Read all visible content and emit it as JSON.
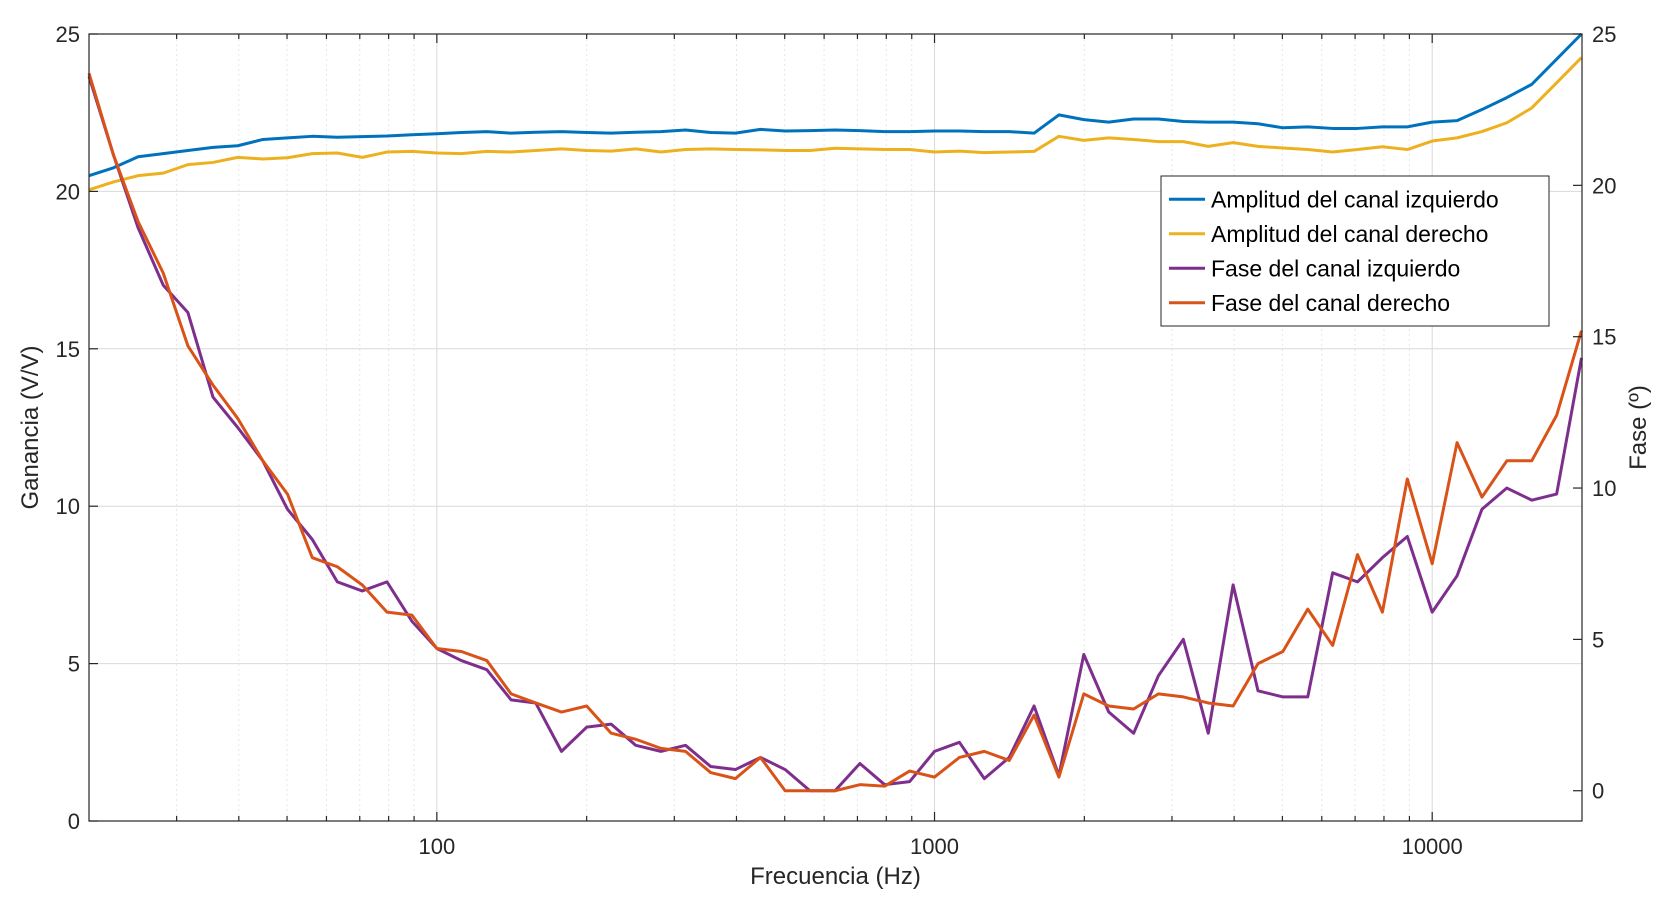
{
  "chart_data": {
    "type": "line",
    "xlabel": "Frecuencia (Hz)",
    "ylabel_left": "Ganancia (V/V)",
    "ylabel_right": "Fase (º)",
    "x_scale": "log",
    "xlim": [
      20,
      20000
    ],
    "ylim_left": [
      0,
      25
    ],
    "ylim_right": [
      -1,
      25
    ],
    "x_ticks": [
      100,
      1000,
      10000
    ],
    "x_tick_labels": [
      "100",
      "1000",
      "10000"
    ],
    "y_left_ticks": [
      0,
      5,
      10,
      15,
      20,
      25
    ],
    "y_left_tick_labels": [
      "0",
      "5",
      "10",
      "15",
      "20",
      "25"
    ],
    "y_right_ticks": [
      0,
      5,
      10,
      15,
      20,
      25
    ],
    "y_right_tick_labels": [
      "0",
      "5",
      "10",
      "15",
      "20",
      "25"
    ],
    "grid": true,
    "legend_position": "top-right",
    "x": [
      20,
      22.4,
      25.1,
      28.2,
      31.6,
      35.5,
      39.8,
      44.7,
      50.1,
      56.2,
      63.1,
      70.8,
      79.4,
      89.1,
      100,
      112,
      126,
      141,
      158,
      178,
      200,
      224,
      251,
      282,
      316,
      355,
      398,
      447,
      501,
      562,
      631,
      708,
      794,
      891,
      1000,
      1122,
      1259,
      1413,
      1585,
      1778,
      1995,
      2239,
      2512,
      2818,
      3162,
      3548,
      3981,
      4467,
      5012,
      5623,
      6310,
      7079,
      7943,
      8913,
      10000,
      11220,
      12589,
      14125,
      15849,
      17783,
      19953
    ],
    "series": [
      {
        "name": "Amplitud del canal izquierdo",
        "axis": "left",
        "color": "#0072BD",
        "values": [
          20.5,
          20.75,
          21.1,
          21.2,
          21.3,
          21.4,
          21.45,
          21.65,
          21.7,
          21.75,
          21.72,
          21.74,
          21.76,
          21.8,
          21.83,
          21.87,
          21.9,
          21.85,
          21.88,
          21.9,
          21.87,
          21.85,
          21.88,
          21.9,
          21.95,
          21.87,
          21.85,
          21.97,
          21.92,
          21.93,
          21.95,
          21.93,
          21.9,
          21.9,
          21.92,
          21.92,
          21.9,
          21.9,
          21.85,
          22.43,
          22.28,
          22.2,
          22.3,
          22.3,
          22.22,
          22.2,
          22.2,
          22.15,
          22.02,
          22.05,
          22.0,
          22.0,
          22.05,
          22.05,
          22.2,
          22.25,
          22.6,
          22.98,
          23.4,
          24.2,
          25.0
        ]
      },
      {
        "name": "Amplitud del canal derecho",
        "axis": "left",
        "color": "#EDB120",
        "values": [
          20.05,
          20.3,
          20.5,
          20.58,
          20.85,
          20.92,
          21.08,
          21.03,
          21.07,
          21.2,
          21.22,
          21.08,
          21.25,
          21.27,
          21.22,
          21.2,
          21.27,
          21.25,
          21.3,
          21.35,
          21.3,
          21.28,
          21.35,
          21.25,
          21.33,
          21.35,
          21.33,
          21.32,
          21.3,
          21.3,
          21.37,
          21.35,
          21.33,
          21.33,
          21.25,
          21.28,
          21.23,
          21.25,
          21.27,
          21.75,
          21.62,
          21.7,
          21.65,
          21.58,
          21.58,
          21.43,
          21.55,
          21.43,
          21.38,
          21.33,
          21.25,
          21.33,
          21.42,
          21.33,
          21.6,
          21.7,
          21.9,
          22.18,
          22.65,
          23.45,
          24.25
        ]
      },
      {
        "name": "Fase del canal izquierdo",
        "axis": "right",
        "color": "#7E2F8E",
        "values": [
          23.6,
          21.0,
          18.6,
          16.7,
          15.8,
          13.0,
          12.0,
          10.9,
          9.3,
          8.3,
          6.9,
          6.6,
          6.9,
          5.6,
          4.7,
          4.3,
          4.0,
          3.0,
          2.9,
          1.3,
          2.1,
          2.2,
          1.5,
          1.3,
          1.5,
          0.8,
          0.7,
          1.1,
          0.7,
          0.0,
          0.0,
          0.9,
          0.2,
          0.3,
          1.3,
          1.6,
          0.4,
          1.1,
          2.8,
          0.5,
          4.5,
          2.6,
          1.9,
          3.8,
          5.0,
          1.9,
          6.8,
          3.3,
          3.1,
          3.1,
          7.2,
          6.9,
          7.7,
          8.4,
          5.9,
          7.1,
          9.3,
          10.0,
          9.6,
          9.8,
          14.3
        ]
      },
      {
        "name": "Fase del canal derecho",
        "axis": "right",
        "color": "#D95319",
        "values": [
          23.7,
          21.0,
          18.8,
          17.1,
          14.7,
          13.4,
          12.3,
          10.9,
          9.8,
          7.7,
          7.4,
          6.8,
          5.9,
          5.8,
          4.7,
          4.6,
          4.3,
          3.2,
          2.9,
          2.6,
          2.8,
          1.9,
          1.7,
          1.4,
          1.3,
          0.6,
          0.4,
          1.1,
          0.0,
          0.0,
          0.0,
          0.2,
          0.15,
          0.65,
          0.45,
          1.1,
          1.3,
          1.0,
          2.5,
          0.45,
          3.2,
          2.8,
          2.7,
          3.2,
          3.1,
          2.9,
          2.8,
          4.2,
          4.6,
          6.0,
          4.8,
          7.8,
          5.9,
          10.3,
          7.5,
          11.5,
          9.7,
          10.9,
          10.9,
          12.4,
          15.2
        ]
      }
    ]
  }
}
